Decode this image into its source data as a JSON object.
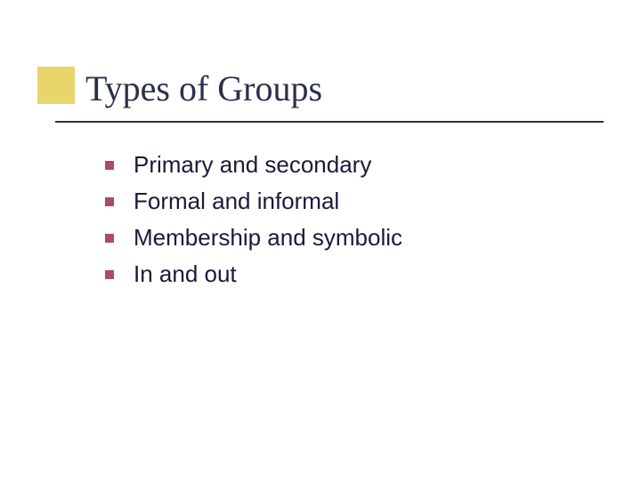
{
  "slide": {
    "title": "Types of Groups",
    "title_color": "#2b2f4a",
    "title_fontsize": 40,
    "title_fontfamily": "Georgia, 'Times New Roman', serif",
    "accent_color": "#e8d66a",
    "underline_color": "#2b2f4a",
    "background_color": "#ffffff",
    "bullets": {
      "items": [
        "Primary and secondary",
        "Formal and informal",
        "Membership and symbolic",
        "In and out"
      ],
      "bullet_color": "#a94b6b",
      "bullet_size": 10,
      "text_color": "#1a1a3a",
      "text_fontsize": 26,
      "text_fontfamily": "Verdana, Geneva, sans-serif"
    }
  }
}
